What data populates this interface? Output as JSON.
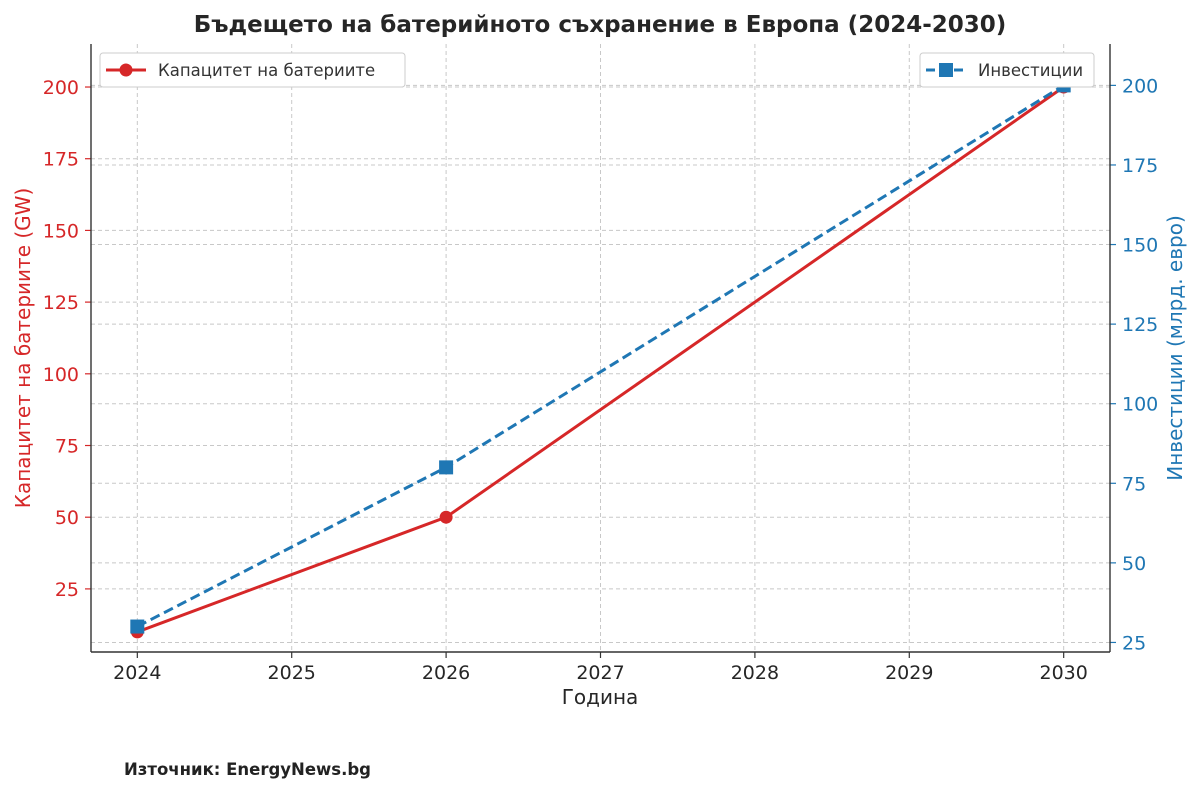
{
  "chart_data": {
    "type": "line",
    "title": "Бъдещето на батерийното съхранение в Европа (2024-2030)",
    "xlabel": "Година",
    "ylabel_left": "Капацитет на батериите (GW)",
    "ylabel_right": "Инвестиции (млрд. евро)",
    "x_ticks": [
      "2024",
      "2025",
      "2026",
      "2027",
      "2028",
      "2029",
      "2030"
    ],
    "x_range": [
      2023.7,
      2030.3
    ],
    "ylim_left": [
      3,
      215
    ],
    "ylim_right": [
      22,
      213
    ],
    "yticks_left": [
      25,
      50,
      75,
      100,
      125,
      150,
      175,
      200
    ],
    "yticks_right": [
      25,
      50,
      75,
      100,
      125,
      150,
      175,
      200
    ],
    "grid": true,
    "series": [
      {
        "name": "Капацитет на батериите",
        "axis": "left",
        "color": "#d62728",
        "linestyle": "solid",
        "marker": "circle",
        "x": [
          2024,
          2026,
          2030
        ],
        "values": [
          10,
          50,
          200
        ]
      },
      {
        "name": "Инвестиции",
        "axis": "right",
        "color": "#1f77b4",
        "linestyle": "dashed",
        "marker": "square",
        "x": [
          2024,
          2026,
          2030
        ],
        "values": [
          30,
          80,
          200
        ]
      }
    ],
    "legend_left_position": "top-left",
    "legend_right_position": "top-right"
  },
  "source": "Източник: EnergyNews.bg"
}
